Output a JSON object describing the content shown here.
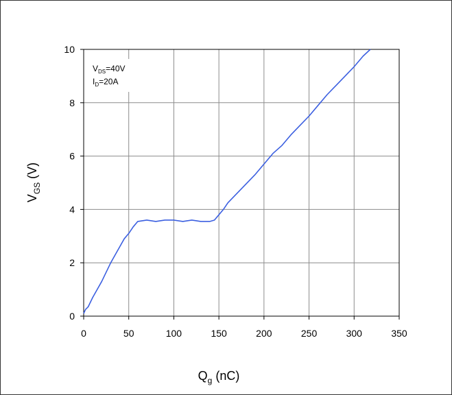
{
  "chart_data": {
    "type": "line",
    "title": "",
    "xlabel": {
      "main": "Q",
      "sub": "g",
      "unit": " (nC)"
    },
    "ylabel": {
      "main": "V",
      "sub": "GS",
      "unit": " (V)"
    },
    "xlim": [
      0,
      350
    ],
    "ylim": [
      0,
      10
    ],
    "xticks": [
      0,
      50,
      100,
      150,
      200,
      250,
      300,
      350
    ],
    "yticks": [
      0,
      2,
      4,
      6,
      8,
      10
    ],
    "grid": true,
    "annotations": [
      {
        "main": "V",
        "sub": "DS",
        "rest": "=40V"
      },
      {
        "main": "I",
        "sub": "D",
        "rest": "=20A"
      }
    ],
    "line_color": "#3b5fe0",
    "series": [
      {
        "name": "",
        "x": [
          0,
          2,
          5,
          10,
          15,
          20,
          25,
          30,
          35,
          40,
          45,
          50,
          55,
          60,
          70,
          80,
          90,
          100,
          110,
          120,
          130,
          140,
          145,
          150,
          155,
          160,
          170,
          180,
          190,
          200,
          210,
          220,
          230,
          240,
          250,
          260,
          270,
          280,
          290,
          300,
          310,
          318
        ],
        "y": [
          0.1,
          0.25,
          0.35,
          0.7,
          1.0,
          1.3,
          1.65,
          2.0,
          2.3,
          2.6,
          2.9,
          3.1,
          3.35,
          3.55,
          3.6,
          3.55,
          3.6,
          3.6,
          3.55,
          3.6,
          3.55,
          3.55,
          3.6,
          3.8,
          4.0,
          4.25,
          4.6,
          4.95,
          5.3,
          5.7,
          6.1,
          6.4,
          6.8,
          7.15,
          7.5,
          7.9,
          8.3,
          8.65,
          9.0,
          9.35,
          9.75,
          10.0
        ]
      }
    ]
  }
}
